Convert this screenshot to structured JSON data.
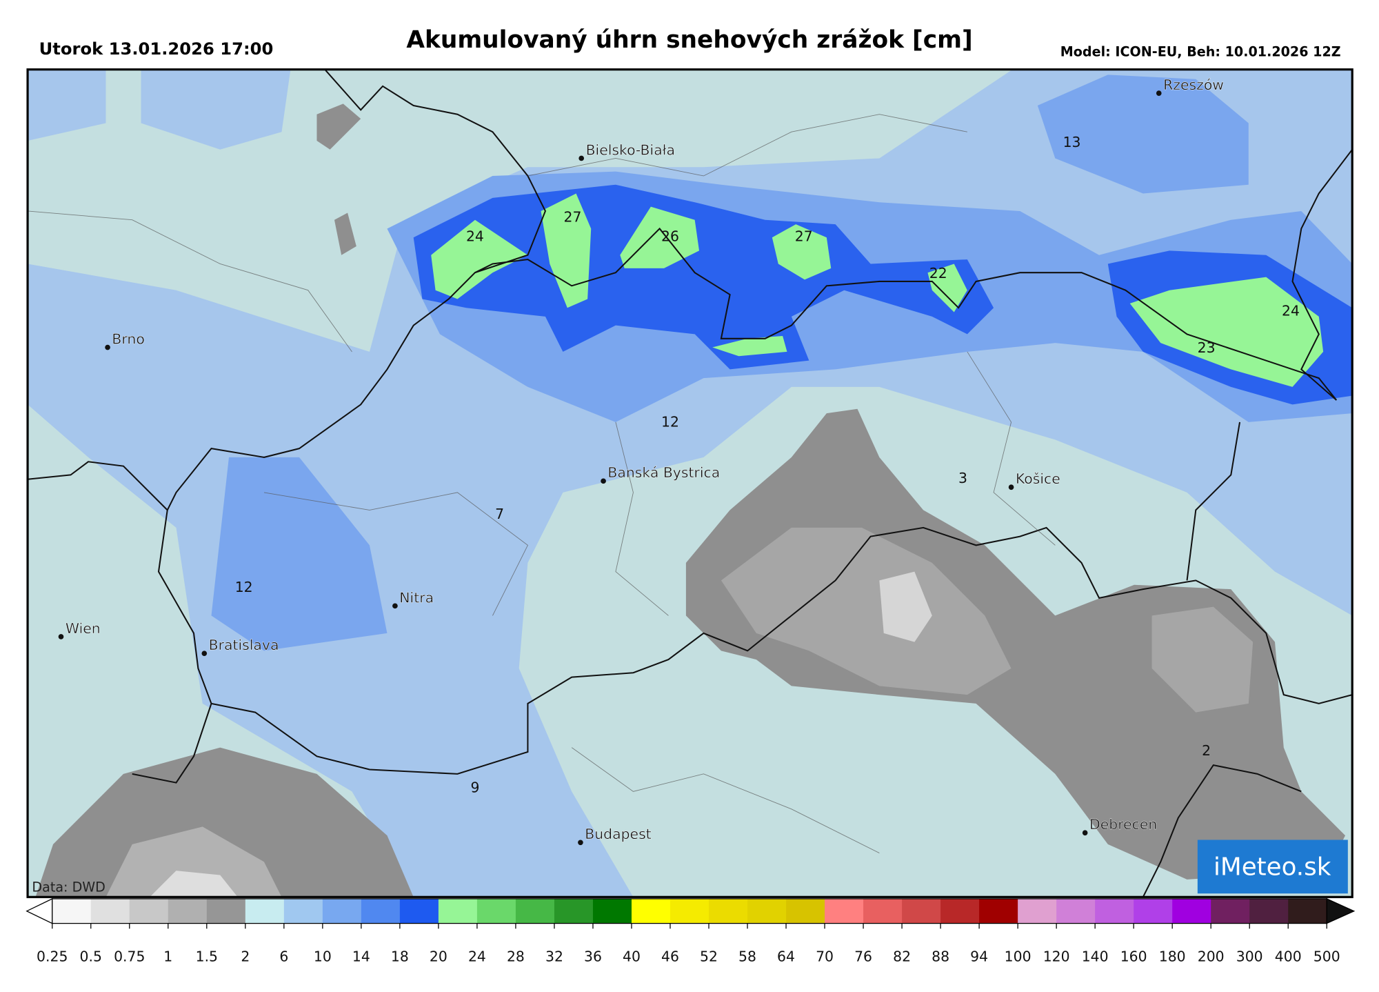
{
  "header": {
    "datetime": "Utorok 13.01.2026 17:00",
    "title": "Akumulovaný úhrn snehových zrážok [cm]",
    "model": "Model: ICON-EU, Beh: 10.01.2026 12Z"
  },
  "map": {
    "cities": [
      "Rzeszów",
      "Bielsko-Biała",
      "Brno",
      "Banská Bystrica",
      "Košice",
      "Nitra",
      "Wien",
      "Bratislava",
      "Budapest",
      "Debrecen"
    ],
    "value_labels": [
      24,
      27,
      26,
      27,
      22,
      13,
      24,
      23,
      12,
      3,
      7,
      12,
      9,
      2
    ],
    "credit": "Data: DWD",
    "logo": "iMeteo.sk"
  },
  "legend": {
    "ticks": [
      0.25,
      0.5,
      0.75,
      1,
      1.5,
      2,
      6,
      10,
      14,
      18,
      20,
      24,
      28,
      32,
      36,
      40,
      46,
      52,
      58,
      64,
      70,
      76,
      82,
      88,
      94,
      100,
      120,
      140,
      160,
      180,
      200,
      300,
      400,
      500
    ],
    "colors": [
      "#f6f6f6",
      "#e0e0e0",
      "#c8c8c8",
      "#b0b0b0",
      "#969696",
      "#c8ecf0",
      "#a0c8f0",
      "#78a8f0",
      "#5088f0",
      "#1e5af0",
      "#96f596",
      "#6ad86a",
      "#46b846",
      "#289628",
      "#007800",
      "#ffff00",
      "#f5eb00",
      "#ebdc00",
      "#e1d200",
      "#d7c300",
      "#ff8080",
      "#e86060",
      "#d04848",
      "#b82828",
      "#a00000",
      "#e0a0d0",
      "#d080d8",
      "#c060e0",
      "#b040e8",
      "#a000e0",
      "#702060",
      "#502040",
      "#301c1c"
    ]
  }
}
